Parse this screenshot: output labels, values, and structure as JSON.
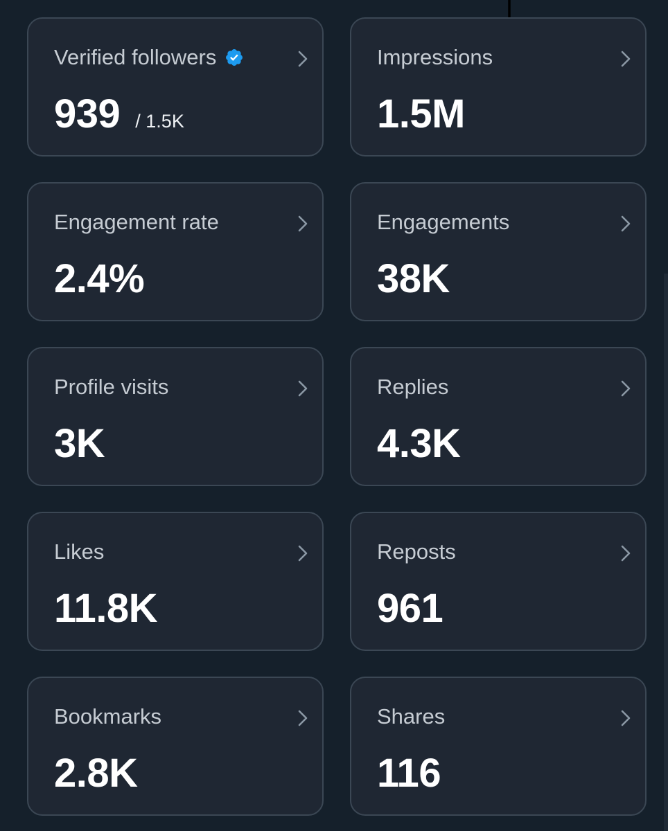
{
  "icons": {
    "verified": "verified-badge-icon",
    "chevron": "chevron-right-icon",
    "verified_color": "#1d9bf0"
  },
  "colors": {
    "background": "#15202b",
    "card_background": "#1f2733",
    "card_border": "#3b4754",
    "label": "#c6ccd3",
    "value": "#ffffff"
  },
  "metrics": [
    {
      "label": "Verified followers",
      "value": "939",
      "subvalue": "/ 1.5K",
      "verified": true
    },
    {
      "label": "Impressions",
      "value": "1.5M"
    },
    {
      "label": "Engagement rate",
      "value": "2.4%"
    },
    {
      "label": "Engagements",
      "value": "38K"
    },
    {
      "label": "Profile visits",
      "value": "3K"
    },
    {
      "label": "Replies",
      "value": "4.3K"
    },
    {
      "label": "Likes",
      "value": "11.8K"
    },
    {
      "label": "Reposts",
      "value": "961"
    },
    {
      "label": "Bookmarks",
      "value": "2.8K"
    },
    {
      "label": "Shares",
      "value": "116"
    }
  ]
}
